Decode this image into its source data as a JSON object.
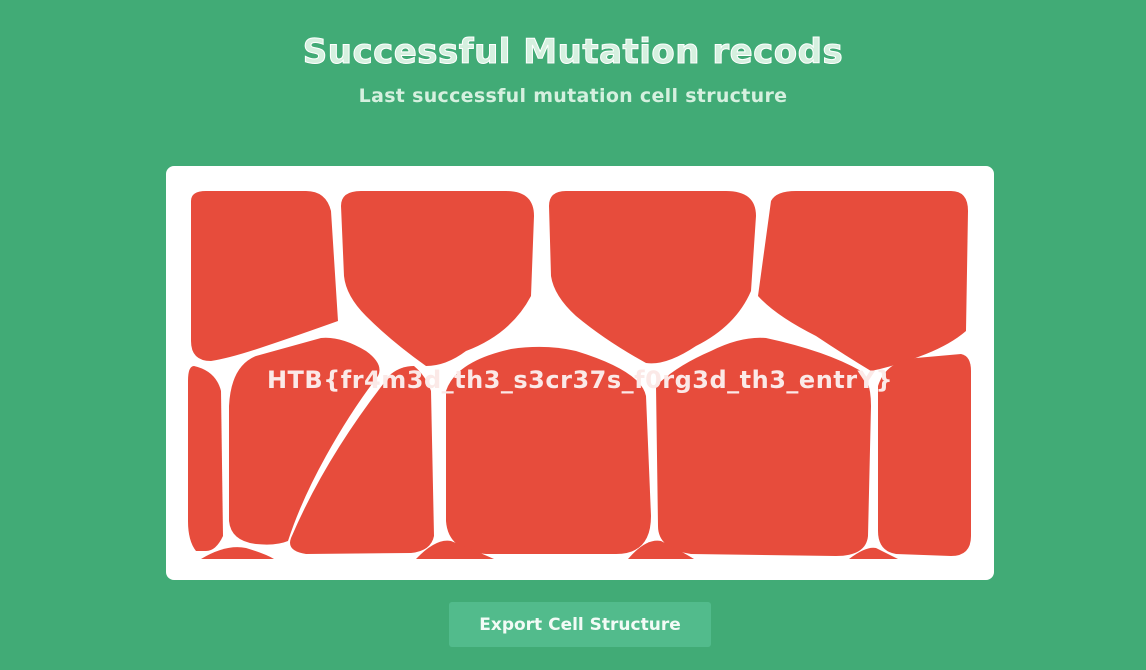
{
  "header": {
    "title": "Successful Mutation recods",
    "subtitle": "Last successful mutation cell structure"
  },
  "canvas": {
    "flag_text": "HTB{fr4m3d_th3_s3cr37s_f0rg3d_th3_entrY}",
    "cell_color": "#e74c3c",
    "background_color": "#ffffff"
  },
  "actions": {
    "export_label": "Export Cell Structure"
  },
  "colors": {
    "page_background": "#41ab76",
    "button_background": "#52bb8c",
    "heading_text": "#d5f0df"
  }
}
